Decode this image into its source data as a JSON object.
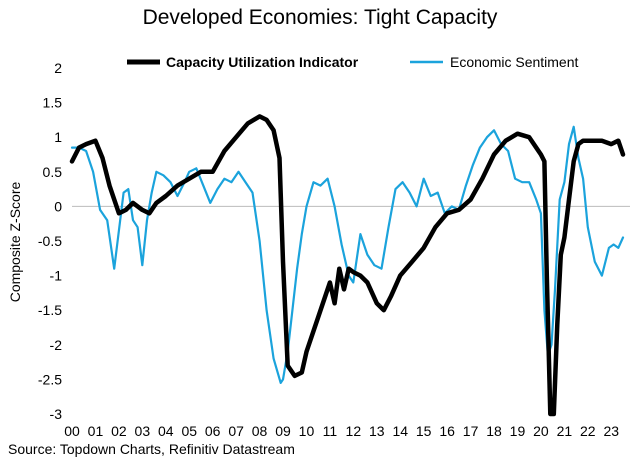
{
  "chart_data": {
    "type": "line",
    "title": "Developed Economies: Tight Capacity",
    "xlabel": "",
    "ylabel": "Composite Z-Score",
    "ylim": [
      -3,
      2
    ],
    "yticks": [
      "2",
      "1.5",
      "1",
      "0.5",
      "0",
      "-0.5",
      "-1",
      "-1.5",
      "-2",
      "-2.5",
      "-3"
    ],
    "xticks": [
      "00",
      "01",
      "02",
      "03",
      "04",
      "05",
      "06",
      "07",
      "08",
      "09",
      "10",
      "11",
      "12",
      "13",
      "14",
      "15",
      "16",
      "17",
      "18",
      "19",
      "20",
      "21",
      "22",
      "23"
    ],
    "xlim": [
      2000,
      2023.8
    ],
    "series": [
      {
        "name": "Capacity Utilization Indicator",
        "color": "#000000",
        "bold": true,
        "x": [
          2000.0,
          2000.3,
          2000.6,
          2001.0,
          2001.3,
          2001.6,
          2002.0,
          2002.3,
          2002.6,
          2003.0,
          2003.3,
          2003.6,
          2004.0,
          2004.5,
          2005.0,
          2005.5,
          2006.0,
          2006.5,
          2007.0,
          2007.5,
          2008.0,
          2008.3,
          2008.6,
          2008.85,
          2009.0,
          2009.2,
          2009.5,
          2009.8,
          2010.0,
          2010.5,
          2011.0,
          2011.2,
          2011.4,
          2011.6,
          2011.8,
          2012.0,
          2012.3,
          2012.6,
          2013.0,
          2013.3,
          2013.6,
          2014.0,
          2014.5,
          2015.0,
          2015.5,
          2016.0,
          2016.5,
          2017.0,
          2017.5,
          2018.0,
          2018.5,
          2019.0,
          2019.5,
          2020.0,
          2020.15,
          2020.25,
          2020.4,
          2020.55,
          2020.7,
          2020.85,
          2021.0,
          2021.2,
          2021.4,
          2021.6,
          2021.8,
          2022.0,
          2022.3,
          2022.6,
          2023.0,
          2023.3,
          2023.5
        ],
        "values": [
          0.65,
          0.85,
          0.9,
          0.95,
          0.7,
          0.3,
          -0.1,
          -0.05,
          0.05,
          -0.05,
          -0.1,
          0.05,
          0.15,
          0.3,
          0.4,
          0.5,
          0.5,
          0.8,
          1.0,
          1.2,
          1.3,
          1.25,
          1.1,
          0.7,
          -0.8,
          -2.3,
          -2.45,
          -2.4,
          -2.1,
          -1.6,
          -1.1,
          -1.4,
          -0.9,
          -1.2,
          -0.9,
          -0.95,
          -1.0,
          -1.1,
          -1.4,
          -1.5,
          -1.3,
          -1.0,
          -0.8,
          -0.6,
          -0.3,
          -0.1,
          -0.05,
          0.1,
          0.4,
          0.75,
          0.95,
          1.05,
          1.0,
          0.75,
          0.65,
          -1.0,
          -3.0,
          -3.0,
          -1.7,
          -0.7,
          -0.45,
          0.1,
          0.65,
          0.9,
          0.95,
          0.95,
          0.95,
          0.95,
          0.9,
          0.95,
          0.75
        ]
      },
      {
        "name": "Economic Sentiment",
        "color": "#1ba3dc",
        "bold": false,
        "x": [
          2000.0,
          2000.3,
          2000.6,
          2000.9,
          2001.2,
          2001.5,
          2001.8,
          2002.0,
          2002.2,
          2002.4,
          2002.6,
          2002.8,
          2003.0,
          2003.2,
          2003.4,
          2003.6,
          2003.9,
          2004.2,
          2004.5,
          2004.8,
          2005.0,
          2005.3,
          2005.6,
          2005.9,
          2006.2,
          2006.5,
          2006.8,
          2007.1,
          2007.4,
          2007.7,
          2008.0,
          2008.3,
          2008.6,
          2008.9,
          2009.0,
          2009.2,
          2009.4,
          2009.6,
          2009.8,
          2010.0,
          2010.3,
          2010.6,
          2010.9,
          2011.2,
          2011.5,
          2011.8,
          2012.0,
          2012.3,
          2012.6,
          2012.9,
          2013.2,
          2013.5,
          2013.8,
          2014.1,
          2014.4,
          2014.7,
          2015.0,
          2015.3,
          2015.6,
          2015.9,
          2016.2,
          2016.5,
          2016.8,
          2017.1,
          2017.4,
          2017.7,
          2018.0,
          2018.3,
          2018.6,
          2018.9,
          2019.2,
          2019.5,
          2019.8,
          2020.0,
          2020.15,
          2020.3,
          2020.45,
          2020.6,
          2020.8,
          2021.0,
          2021.2,
          2021.4,
          2021.6,
          2021.8,
          2022.0,
          2022.3,
          2022.6,
          2022.9,
          2023.1,
          2023.3,
          2023.5
        ],
        "values": [
          0.85,
          0.85,
          0.8,
          0.5,
          -0.05,
          -0.2,
          -0.9,
          -0.35,
          0.2,
          0.25,
          -0.2,
          -0.3,
          -0.85,
          -0.2,
          0.2,
          0.5,
          0.45,
          0.35,
          0.15,
          0.35,
          0.5,
          0.55,
          0.3,
          0.05,
          0.25,
          0.4,
          0.35,
          0.5,
          0.35,
          0.2,
          -0.5,
          -1.5,
          -2.2,
          -2.55,
          -2.5,
          -2.1,
          -1.5,
          -0.9,
          -0.4,
          0.0,
          0.35,
          0.3,
          0.4,
          0.0,
          -0.55,
          -1.0,
          -1.1,
          -0.4,
          -0.7,
          -0.85,
          -0.9,
          -0.3,
          0.25,
          0.35,
          0.2,
          0.0,
          0.4,
          0.15,
          0.2,
          -0.1,
          0.0,
          -0.05,
          0.3,
          0.6,
          0.85,
          1.0,
          1.1,
          0.9,
          0.8,
          0.4,
          0.35,
          0.35,
          0.1,
          -0.1,
          -1.5,
          -2.15,
          -2.0,
          -1.2,
          0.1,
          0.35,
          0.9,
          1.15,
          0.7,
          0.4,
          -0.3,
          -0.8,
          -1.0,
          -0.6,
          -0.55,
          -0.6,
          -0.45
        ]
      }
    ],
    "legend": "top-center",
    "source": "Source: Topdown Charts, Refinitiv Datastream"
  }
}
